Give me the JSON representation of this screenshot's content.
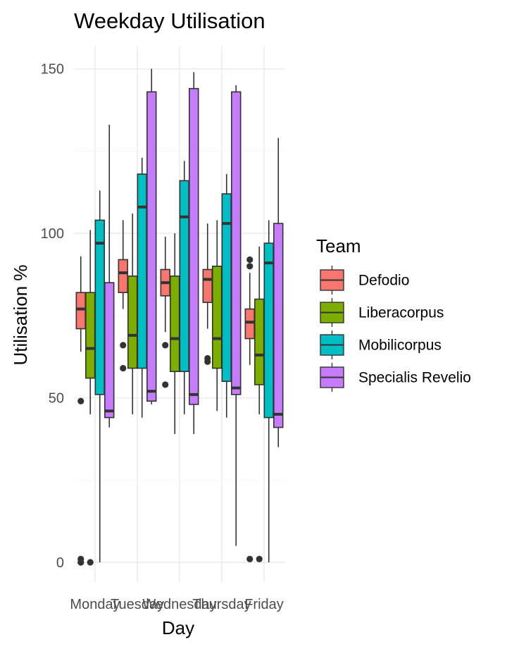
{
  "chart_data": {
    "type": "boxplot",
    "title": "Weekday Utilisation",
    "xlabel": "Day",
    "ylabel": "Utilisation %",
    "categories": [
      "Monday",
      "Tuesday",
      "Wednesday",
      "Thursday",
      "Friday"
    ],
    "y_ticks": [
      0,
      50,
      100,
      150
    ],
    "ylim": [
      -6,
      157
    ],
    "grid": true,
    "legend": {
      "title": "Team",
      "position": "right"
    },
    "series": [
      {
        "name": "Defodio",
        "color": "#F8766D",
        "boxes": [
          {
            "min": 64,
            "q1": 71,
            "median": 77,
            "q3": 82,
            "max": 93,
            "outliers": [
              49,
              1,
              0,
              0
            ]
          },
          {
            "min": 77,
            "q1": 82,
            "median": 88,
            "q3": 92,
            "max": 104,
            "outliers": [
              66,
              59
            ]
          },
          {
            "min": 70,
            "q1": 81,
            "median": 85,
            "q3": 89,
            "max": 99,
            "outliers": [
              66,
              54
            ]
          },
          {
            "min": 71,
            "q1": 79,
            "median": 86,
            "q3": 89,
            "max": 103,
            "outliers": [
              62,
              61
            ]
          },
          {
            "min": 60,
            "q1": 68,
            "median": 73,
            "q3": 77,
            "max": 88,
            "outliers": [
              92,
              90,
              1
            ]
          }
        ]
      },
      {
        "name": "Liberacorpus",
        "color": "#7CAE00",
        "boxes": [
          {
            "min": 45,
            "q1": 56,
            "median": 65,
            "q3": 82,
            "max": 101,
            "outliers": [
              0
            ]
          },
          {
            "min": 45,
            "q1": 59,
            "median": 69,
            "q3": 87,
            "max": 106,
            "outliers": []
          },
          {
            "min": 39,
            "q1": 58,
            "median": 68,
            "q3": 87,
            "max": 100,
            "outliers": []
          },
          {
            "min": 46,
            "q1": 59,
            "median": 68,
            "q3": 90,
            "max": 104,
            "outliers": []
          },
          {
            "min": 45,
            "q1": 54,
            "median": 63,
            "q3": 80,
            "max": 96,
            "outliers": [
              1
            ]
          }
        ]
      },
      {
        "name": "Mobilicorpus",
        "color": "#00BFC4",
        "boxes": [
          {
            "min": 0,
            "q1": 51,
            "median": 97,
            "q3": 104,
            "max": 113,
            "outliers": []
          },
          {
            "min": 44,
            "q1": 59,
            "median": 108,
            "q3": 118,
            "max": 123,
            "outliers": []
          },
          {
            "min": 45,
            "q1": 58,
            "median": 105,
            "q3": 116,
            "max": 122,
            "outliers": []
          },
          {
            "min": 44,
            "q1": 55,
            "median": 103,
            "q3": 112,
            "max": 118,
            "outliers": []
          },
          {
            "min": 0,
            "q1": 44,
            "median": 91,
            "q3": 97,
            "max": 104,
            "outliers": []
          }
        ]
      },
      {
        "name": "Specialis Revelio",
        "color": "#C77CFF",
        "boxes": [
          {
            "min": 41,
            "q1": 44,
            "median": 46,
            "q3": 85,
            "max": 133,
            "outliers": []
          },
          {
            "min": 48,
            "q1": 49,
            "median": 52,
            "q3": 143,
            "max": 150,
            "outliers": []
          },
          {
            "min": 39,
            "q1": 48,
            "median": 51,
            "q3": 144,
            "max": 149,
            "outliers": []
          },
          {
            "min": 5,
            "q1": 51,
            "median": 53,
            "q3": 143,
            "max": 145,
            "outliers": []
          },
          {
            "min": 35,
            "q1": 41,
            "median": 45,
            "q3": 103,
            "max": 129,
            "outliers": []
          }
        ]
      }
    ]
  }
}
